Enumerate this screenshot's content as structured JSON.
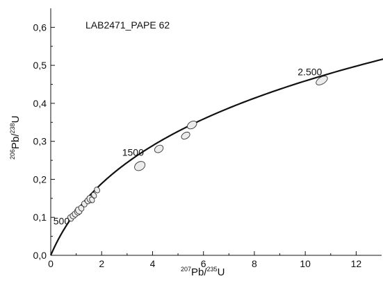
{
  "chart_data": {
    "type": "scatter",
    "title": "LAB2471_PAPE 62",
    "xlabel": {
      "sup": "207",
      "base": "Pb/",
      "sup2": "235",
      "base2": "U"
    },
    "ylabel": {
      "sup": "206",
      "base": "Pb/",
      "sup2": "238",
      "base2": "U"
    },
    "xlim": [
      0,
      13
    ],
    "ylim": [
      0,
      0.65
    ],
    "x_ticks": [
      {
        "value": 0,
        "label": "0"
      },
      {
        "value": 2,
        "label": "2"
      },
      {
        "value": 4,
        "label": "4"
      },
      {
        "value": 6,
        "label": "6"
      },
      {
        "value": 8,
        "label": "8"
      },
      {
        "value": 10,
        "label": "10"
      },
      {
        "value": 12,
        "label": "12"
      }
    ],
    "y_ticks": [
      {
        "value": 0,
        "label": "0,0"
      },
      {
        "value": 0.1,
        "label": "0,1"
      },
      {
        "value": 0.2,
        "label": "0,2"
      },
      {
        "value": 0.3,
        "label": "0,3"
      },
      {
        "value": 0.4,
        "label": "0,4"
      },
      {
        "value": 0.5,
        "label": "0,5"
      },
      {
        "value": 0.6,
        "label": "0,6"
      }
    ],
    "grid": false,
    "concordia_ages": [
      {
        "label": "500",
        "x": 0.64,
        "y": 0.081
      },
      {
        "label": "1500",
        "x": 3.45,
        "y": 0.262
      },
      {
        "label": "2.500",
        "x": 10.4,
        "y": 0.474
      }
    ],
    "ellipses": [
      {
        "x": 0.78,
        "y": 0.098,
        "rx": 0.1,
        "ry": 0.009
      },
      {
        "x": 0.88,
        "y": 0.104,
        "rx": 0.12,
        "ry": 0.008
      },
      {
        "x": 0.95,
        "y": 0.108,
        "rx": 0.1,
        "ry": 0.008
      },
      {
        "x": 1.05,
        "y": 0.114,
        "rx": 0.11,
        "ry": 0.009
      },
      {
        "x": 1.1,
        "y": 0.118,
        "rx": 0.12,
        "ry": 0.01
      },
      {
        "x": 1.2,
        "y": 0.124,
        "rx": 0.1,
        "ry": 0.008
      },
      {
        "x": 1.32,
        "y": 0.135,
        "rx": 0.1,
        "ry": 0.008
      },
      {
        "x": 1.45,
        "y": 0.143,
        "rx": 0.1,
        "ry": 0.008
      },
      {
        "x": 1.55,
        "y": 0.148,
        "rx": 0.12,
        "ry": 0.01
      },
      {
        "x": 1.62,
        "y": 0.146,
        "rx": 0.09,
        "ry": 0.008
      },
      {
        "x": 1.7,
        "y": 0.158,
        "rx": 0.09,
        "ry": 0.008
      },
      {
        "x": 1.82,
        "y": 0.172,
        "rx": 0.1,
        "ry": 0.008
      },
      {
        "x": 3.5,
        "y": 0.235,
        "rx": 0.22,
        "ry": 0.011
      },
      {
        "x": 4.25,
        "y": 0.28,
        "rx": 0.18,
        "ry": 0.009
      },
      {
        "x": 5.3,
        "y": 0.315,
        "rx": 0.18,
        "ry": 0.008
      },
      {
        "x": 5.55,
        "y": 0.343,
        "rx": 0.2,
        "ry": 0.009
      },
      {
        "x": 10.65,
        "y": 0.46,
        "rx": 0.25,
        "ry": 0.009
      }
    ]
  }
}
